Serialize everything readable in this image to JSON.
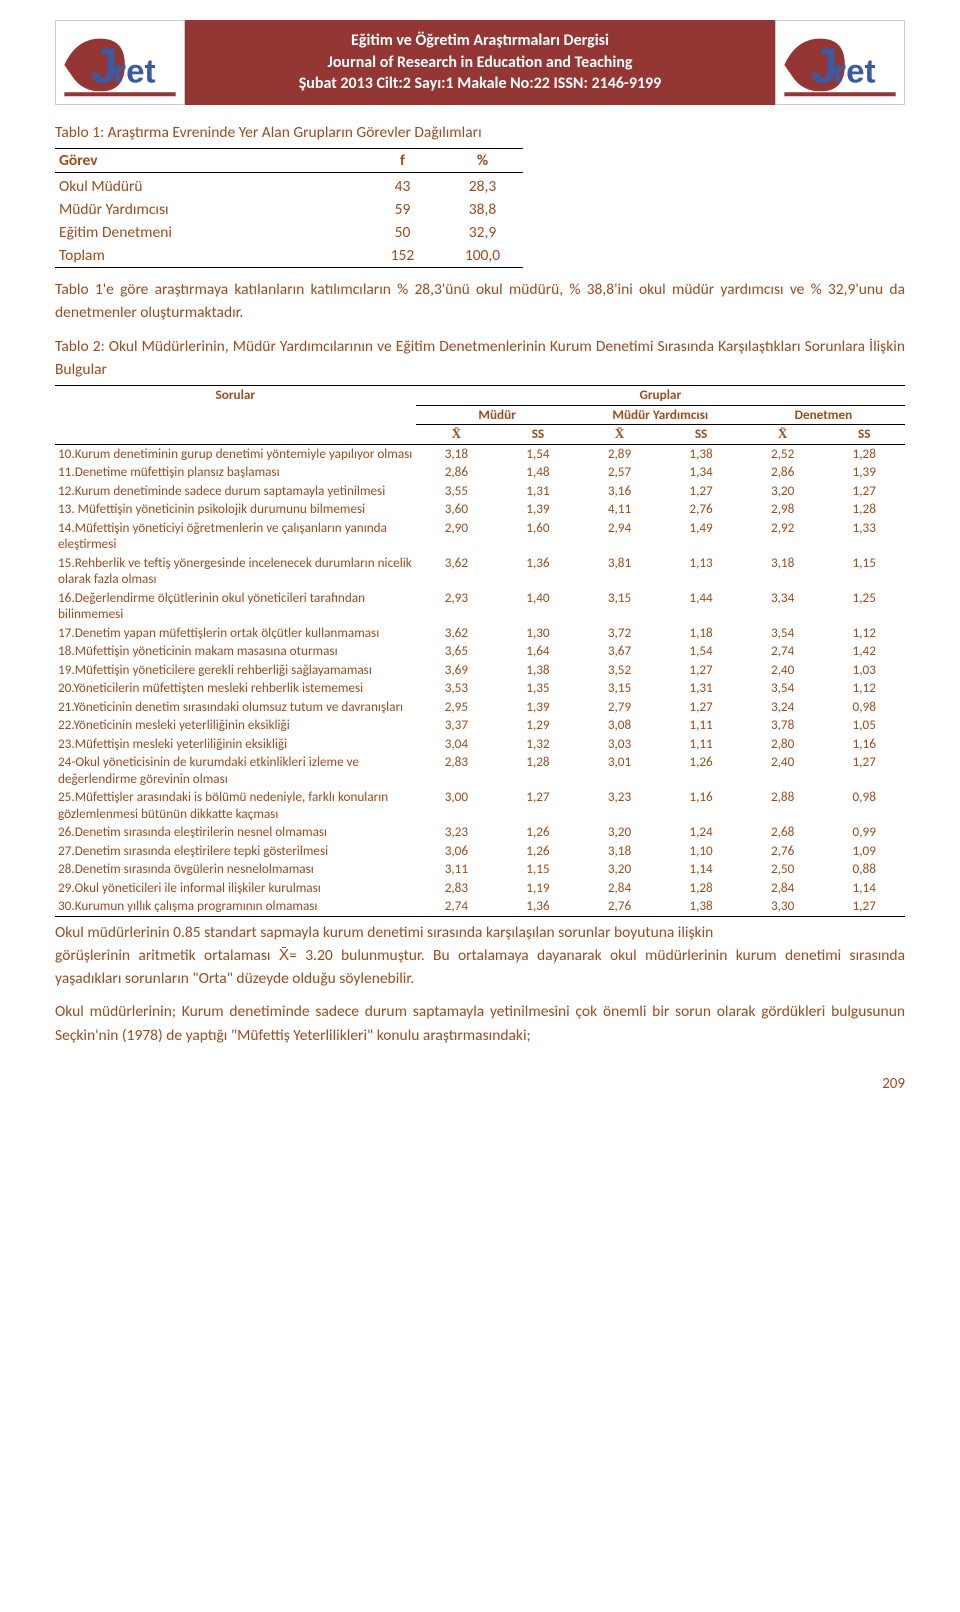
{
  "colors": {
    "header_bg": "#943634",
    "header_fg": "#ffffff",
    "accent": "#9b4d1e",
    "text": "#000000",
    "border": "#000000"
  },
  "header": {
    "line1": "Eğitim ve Öğretim Araştırmaları Dergisi",
    "line2": "Journal of Research in Education and Teaching",
    "line3": "Şubat 2013  Cilt:2  Sayı:1  Makale No:22   ISSN: 2146-9199"
  },
  "logo": {
    "letter": "J",
    "word": "ret"
  },
  "table1": {
    "caption": "Tablo 1:  Araştırma Evreninde Yer Alan Grupların Görevler Dağılımları",
    "headers": [
      "Görev",
      "f",
      "%"
    ],
    "rows": [
      [
        "Okul Müdürü",
        "43",
        "28,3"
      ],
      [
        "Müdür Yardımcısı",
        "59",
        "38,8"
      ],
      [
        "Eğitim Denetmeni",
        "50",
        "32,9"
      ],
      [
        "Toplam",
        "152",
        "100,0"
      ]
    ]
  },
  "para1": "Tablo 1'e göre   araştırmaya katılanların katılımcıların % 28,3'ünü okul müdürü,    % 38,8'ini okul müdür yardımcısı ve % 32,9'unu da  denetmenler oluşturmaktadır.",
  "table2": {
    "caption": "Tablo 2: Okul Müdürlerinin, Müdür Yardımcılarının ve Eğitim Denetmenlerinin Kurum Denetimi Sırasında Karşılaştıkları Sorunlara İlişkin  Bulgular",
    "sorular_label": "Sorular",
    "gruplar_label": "Gruplar",
    "group_headers": [
      "Müdür",
      "Müdür Yardımcısı",
      "Denetmen"
    ],
    "stat_labels": [
      "X̄",
      "SS"
    ],
    "rows": [
      {
        "q": "10.Kurum denetiminin gurup denetimi yöntemiyle yapılıyor olması",
        "v": [
          "3,18",
          "1,54",
          "2,89",
          "1,38",
          "2,52",
          "1,28"
        ]
      },
      {
        "q": "11.Denetime müfettişin plansız başlaması",
        "v": [
          "2,86",
          "1,48",
          "2,57",
          "1,34",
          "2,86",
          "1,39"
        ]
      },
      {
        "q": "12.Kurum denetiminde sadece durum saptamayla yetinilmesi",
        "v": [
          "3,55",
          "1,31",
          "3,16",
          "1,27",
          "3,20",
          "1,27"
        ]
      },
      {
        "q": "13. Müfettişin yöneticinin psikolojik durumunu bilmemesi",
        "v": [
          "3,60",
          "1,39",
          "4,11",
          "2,76",
          "2,98",
          "1,28"
        ]
      },
      {
        "q": "14.Müfettişin yöneticiyi öğretmenlerin ve çalışanların yanında eleştirmesi",
        "v": [
          "2,90",
          "1,60",
          "2,94",
          "1,49",
          "2,92",
          "1,33"
        ]
      },
      {
        "q": "15.Rehberlik ve teftiş yönergesinde incelenecek durumların nicelik olarak fazla olması",
        "v": [
          "3,62",
          "1,36",
          "3,81",
          "1,13",
          "3,18",
          "1,15"
        ]
      },
      {
        "q": "16.Değerlendirme ölçütlerinin okul yöneticileri tarafından bilinmemesi",
        "v": [
          "2,93",
          "1,40",
          "3,15",
          "1,44",
          "3,34",
          "1,25"
        ]
      },
      {
        "q": "17.Denetim yapan müfettişlerin ortak ölçütler kullanmaması",
        "v": [
          "3,62",
          "1,30",
          "3,72",
          "1,18",
          "3,54",
          "1,12"
        ]
      },
      {
        "q": "18.Müfettişin yöneticinin makam masasına oturması",
        "v": [
          "3,65",
          "1,64",
          "3,67",
          "1,54",
          "2,74",
          "1,42"
        ]
      },
      {
        "q": "19.Müfettişin yöneticilere gerekli rehberliği sağlayamaması",
        "v": [
          "3,69",
          "1,38",
          "3,52",
          "1,27",
          "2,40",
          "1,03"
        ]
      },
      {
        "q": "20.Yöneticilerin müfettişten mesleki rehberlik istememesi",
        "v": [
          "3,53",
          "1,35",
          "3,15",
          "1,31",
          "3,54",
          "1,12"
        ]
      },
      {
        "q": "21.Yöneticinin denetim sırasındaki olumsuz tutum ve davranışları",
        "v": [
          "2,95",
          "1,39",
          "2,79",
          "1,27",
          "3,24",
          "0,98"
        ]
      },
      {
        "q": "22.Yöneticinin mesleki yeterliliğinin eksikliği",
        "v": [
          "3,37",
          "1,29",
          "3,08",
          "1,11",
          "3,78",
          "1,05"
        ]
      },
      {
        "q": "23.Müfettişin mesleki yeterliliğinin eksikliği",
        "v": [
          "3,04",
          "1,32",
          "3,03",
          "1,11",
          "2,80",
          "1,16"
        ]
      },
      {
        "q": "24-Okul yöneticisinin de kurumdaki etkinlikleri izleme ve değerlendirme görevinin olması",
        "v": [
          "2,83",
          "1,28",
          "3,01",
          "1,26",
          "2,40",
          "1,27"
        ]
      },
      {
        "q": "25.Müfettişler arasındaki is bölümü nedeniyle, farklı konuların gözlemlenmesi bütünün dikkatte kaçması",
        "v": [
          "3,00",
          "1,27",
          "3,23",
          "1,16",
          "2,88",
          "0,98"
        ]
      },
      {
        "q": "26.Denetim sırasında eleştirilerin nesnel olmaması",
        "v": [
          "3,23",
          "1,26",
          "3,20",
          "1,24",
          "2,68",
          "0,99"
        ]
      },
      {
        "q": "27.Denetim sırasında eleştirilere tepki gösterilmesi",
        "v": [
          "3,06",
          "1,26",
          "3,18",
          "1,10",
          "2,76",
          "1,09"
        ]
      },
      {
        "q": "28.Denetim sırasında övgülerin nesnelolmaması",
        "v": [
          "3,11",
          "1,15",
          "3,20",
          "1,14",
          "2,50",
          "0,88"
        ]
      },
      {
        "q": "29.Okul yöneticileri ile informal  ilişkiler kurulması",
        "v": [
          "2,83",
          "1,19",
          "2,84",
          "1,28",
          "2,84",
          "1,14"
        ]
      },
      {
        "q": "30.Kurumun yıllık çalışma programının olmaması",
        "v": [
          "2,74",
          "1,36",
          "2,76",
          "1,38",
          "3,30",
          "1,27"
        ]
      }
    ]
  },
  "para2_a": "Okul müdürlerinin 0.85 standart sapmayla kurum denetimi sırasında karşılaşılan sorunlar boyutuna ilişkin",
  "para2_b": "görüşlerinin aritmetik ortalaması X̄= 3.20 bulunmuştur. Bu ortalamaya dayanarak okul müdürlerinin kurum denetimi sırasında yaşadıkları sorunların   \"Orta\" düzeyde olduğu söylenebilir.",
  "para3": "Okul müdürlerinin; Kurum denetiminde sadece durum saptamayla yetinilmesini çok önemli bir sorun olarak gördükleri bulgusunun Seçkin'nin    (1978) de yaptığı    \"Müfettiş Yeterlilikleri\" konulu araştırmasındaki;",
  "page_num": "209"
}
